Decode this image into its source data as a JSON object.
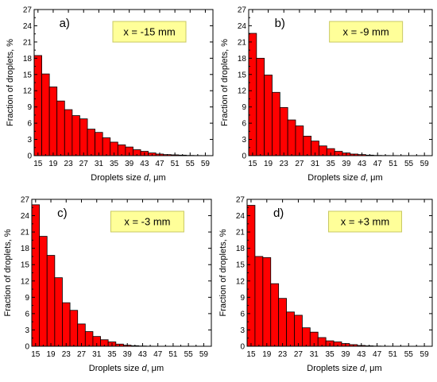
{
  "colors": {
    "bar_fill": "#ff0000",
    "bar_stroke": "#000000",
    "legend_box_fill": "#ffff99",
    "legend_box_stroke": "#c8c864"
  },
  "chart_data": [
    {
      "type": "bar",
      "panel_label": "a)",
      "annotation": "x = -15 mm",
      "xlabel_prefix": "Droplets size ",
      "xlabel_var": "d",
      "xlabel_suffix": ", μm",
      "ylabel": "Fraction of droplets, %",
      "x_ticks": [
        "15",
        "19",
        "23",
        "27",
        "31",
        "35",
        "39",
        "43",
        "47",
        "51",
        "55",
        "59"
      ],
      "y_ticks": [
        "0",
        "3",
        "6",
        "9",
        "12",
        "15",
        "18",
        "21",
        "24",
        "27"
      ],
      "xlim": [
        14,
        61
      ],
      "ylim": [
        0,
        27
      ],
      "bin_width": 2,
      "x": [
        15,
        17,
        19,
        21,
        23,
        25,
        27,
        29,
        31,
        33,
        35,
        37,
        39,
        41,
        43,
        45,
        47,
        49,
        51,
        53,
        55,
        57,
        59
      ],
      "values": [
        18.5,
        15.1,
        12.7,
        10.1,
        8.5,
        7.4,
        6.8,
        4.9,
        4.3,
        3.3,
        2.5,
        2.0,
        1.6,
        1.1,
        0.8,
        0.5,
        0.3,
        0.2,
        0.15,
        0.1,
        0.05,
        0.03,
        0.02
      ]
    },
    {
      "type": "bar",
      "panel_label": "b)",
      "annotation": "x = -9 mm",
      "xlabel_prefix": "Droplets size ",
      "xlabel_var": "d",
      "xlabel_suffix": ", μm",
      "ylabel": "Fraction of droplets, %",
      "x_ticks": [
        "15",
        "19",
        "23",
        "27",
        "31",
        "35",
        "39",
        "43",
        "47",
        "51",
        "55",
        "59"
      ],
      "y_ticks": [
        "0",
        "3",
        "6",
        "9",
        "12",
        "15",
        "18",
        "21",
        "24",
        "27"
      ],
      "xlim": [
        14,
        61
      ],
      "ylim": [
        0,
        27
      ],
      "bin_width": 2,
      "x": [
        15,
        17,
        19,
        21,
        23,
        25,
        27,
        29,
        31,
        33,
        35,
        37,
        39,
        41,
        43,
        45,
        47,
        49,
        51,
        53,
        55,
        57,
        59
      ],
      "values": [
        22.6,
        18.0,
        14.9,
        11.7,
        8.9,
        6.6,
        5.5,
        3.6,
        2.7,
        1.8,
        1.3,
        0.8,
        0.5,
        0.3,
        0.2,
        0.1,
        0.05,
        0.03,
        0.02,
        0.01,
        0.01,
        0.01,
        0.0
      ]
    },
    {
      "type": "bar",
      "panel_label": "c)",
      "annotation": "x = -3 mm",
      "xlabel_prefix": "Droplets size ",
      "xlabel_var": "d",
      "xlabel_suffix": ", μm",
      "ylabel": "Fraction of droplets, %",
      "x_ticks": [
        "15",
        "19",
        "23",
        "27",
        "31",
        "35",
        "39",
        "43",
        "47",
        "51",
        "55",
        "59"
      ],
      "y_ticks": [
        "0",
        "3",
        "6",
        "9",
        "12",
        "15",
        "18",
        "21",
        "24",
        "27"
      ],
      "xlim": [
        14,
        61
      ],
      "ylim": [
        0,
        27
      ],
      "bin_width": 2,
      "x": [
        15,
        17,
        19,
        21,
        23,
        25,
        27,
        29,
        31,
        33,
        35,
        37,
        39,
        41,
        43,
        45,
        47,
        49,
        51,
        53,
        55,
        57,
        59
      ],
      "values": [
        26.0,
        20.2,
        16.7,
        12.6,
        8.0,
        6.6,
        4.1,
        2.7,
        1.8,
        1.2,
        0.8,
        0.4,
        0.2,
        0.1,
        0.05,
        0.02,
        0.01,
        0.0,
        0.0,
        0.0,
        0.0,
        0.0,
        0.0
      ]
    },
    {
      "type": "bar",
      "panel_label": "d)",
      "annotation": "x = +3 mm",
      "xlabel_prefix": "Droplets size ",
      "xlabel_var": "d",
      "xlabel_suffix": ", μm",
      "ylabel": "Fraction of droplets, %",
      "x_ticks": [
        "15",
        "19",
        "23",
        "27",
        "31",
        "35",
        "39",
        "43",
        "47",
        "51",
        "55",
        "59"
      ],
      "y_ticks": [
        "0",
        "3",
        "6",
        "9",
        "12",
        "15",
        "18",
        "21",
        "24",
        "27"
      ],
      "xlim": [
        14,
        61
      ],
      "ylim": [
        0,
        27
      ],
      "bin_width": 2,
      "x": [
        15,
        17,
        19,
        21,
        23,
        25,
        27,
        29,
        31,
        33,
        35,
        37,
        39,
        41,
        43,
        45,
        47,
        49,
        51,
        53,
        55,
        57,
        59
      ],
      "values": [
        25.9,
        16.5,
        16.3,
        11.5,
        8.8,
        6.3,
        5.7,
        3.4,
        2.6,
        1.6,
        1.0,
        0.8,
        0.5,
        0.3,
        0.15,
        0.08,
        0.04,
        0.02,
        0.01,
        0.0,
        0.0,
        0.0,
        0.0
      ]
    }
  ]
}
